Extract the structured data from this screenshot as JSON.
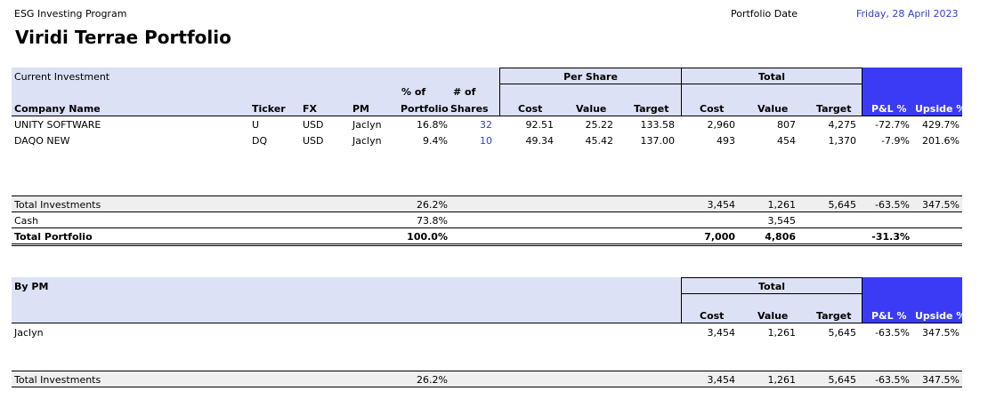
{
  "header": {
    "program": "ESG Investing Program",
    "title": "Viridi Terrae Portfolio",
    "date_label": "Portfolio Date",
    "date_value": "Friday, 28 April 2023"
  },
  "colors": {
    "band": "#DCE1F5",
    "pl_band": "#3B3BF5",
    "link_blue": "#2F3FD8"
  },
  "current": {
    "section_label": "Current Investment",
    "group_per_share": "Per Share",
    "group_total": "Total",
    "columns": {
      "company": "Company Name",
      "ticker": "Ticker",
      "fx": "FX",
      "pm": "PM",
      "pct_line1": "% of",
      "pct_line2": "Portfolio",
      "shares_line1": "# of",
      "shares_line2": "Shares",
      "ps_cost": "Cost",
      "ps_value": "Value",
      "ps_target": "Target",
      "t_cost": "Cost",
      "t_value": "Value",
      "t_target": "Target",
      "pl": "P&L %",
      "upside": "Upside %"
    },
    "rows": [
      {
        "company": "UNITY SOFTWARE",
        "ticker": "U",
        "fx": "USD",
        "pm": "Jaclyn",
        "pct": "16.8%",
        "shares": "32",
        "ps_cost": "92.51",
        "ps_value": "25.22",
        "ps_target": "133.58",
        "t_cost": "2,960",
        "t_value": "807",
        "t_target": "4,275",
        "pl": "-72.7%",
        "upside": "429.7%"
      },
      {
        "company": "DAQO NEW",
        "ticker": "DQ",
        "fx": "USD",
        "pm": "Jaclyn",
        "pct": "9.4%",
        "shares": "10",
        "ps_cost": "49.34",
        "ps_value": "45.42",
        "ps_target": "137.00",
        "t_cost": "493",
        "t_value": "454",
        "t_target": "1,370",
        "pl": "-7.9%",
        "upside": "201.6%"
      }
    ],
    "totals": {
      "investments": {
        "label": "Total Investments",
        "pct": "26.2%",
        "t_cost": "3,454",
        "t_value": "1,261",
        "t_target": "5,645",
        "pl": "-63.5%",
        "upside": "347.5%"
      },
      "cash": {
        "label": "Cash",
        "pct": "73.8%",
        "t_value": "3,545"
      },
      "portfolio": {
        "label": "Total Portfolio",
        "pct": "100.0%",
        "t_cost": "7,000",
        "t_value": "4,806",
        "pl": "-31.3%"
      }
    }
  },
  "by_pm": {
    "section_label": "By PM",
    "group_total": "Total",
    "columns": {
      "t_cost": "Cost",
      "t_value": "Value",
      "t_target": "Target",
      "pl": "P&L %",
      "upside": "Upside %"
    },
    "rows": [
      {
        "pm": "Jaclyn",
        "t_cost": "3,454",
        "t_value": "1,261",
        "t_target": "5,645",
        "pl": "-63.5%",
        "upside": "347.5%"
      }
    ],
    "total": {
      "label": "Total Investments",
      "pct": "26.2%",
      "t_cost": "3,454",
      "t_value": "1,261",
      "t_target": "5,645",
      "pl": "-63.5%",
      "upside": "347.5%"
    }
  }
}
